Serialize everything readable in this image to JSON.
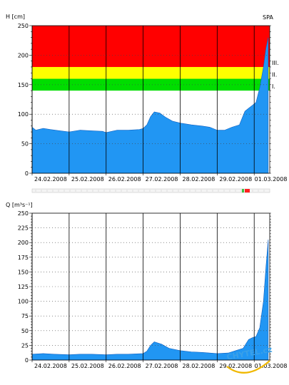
{
  "station": "SPA",
  "colors": {
    "fill": "#2196f3",
    "band_red": "#ff0000",
    "band_yellow": "#ffff00",
    "band_green": "#00dd00",
    "grid": "#000000",
    "timeline_marker_red": "#ff2020",
    "timeline_marker_green": "#40c040"
  },
  "watermark": "CHYTEL.cz",
  "chart_data": [
    {
      "type": "area",
      "ylabel": "H [cm]",
      "ylim": [
        0,
        250
      ],
      "yticks": [
        "0",
        "50",
        "100",
        "150",
        "200",
        "250"
      ],
      "xlim": [
        "24.02.2008 00:00",
        "01.03.2008 10:00"
      ],
      "xtick_labels": [
        "24.02.2008",
        "25.02.2008",
        "26.02.2008",
        "27.02.2008",
        "28.02.2008",
        "29.02.2008",
        "01.03.2008"
      ],
      "flood_levels": [
        {
          "name": "I.",
          "from": 140,
          "to": 160,
          "color": "green"
        },
        {
          "name": "II.",
          "from": 160,
          "to": 180,
          "color": "yellow"
        },
        {
          "name": "III.",
          "from": 180,
          "to": 250,
          "color": "red"
        }
      ],
      "series": [
        {
          "x": [
            0,
            0.1,
            0.3,
            0.5,
            0.75,
            1.0,
            1.3,
            1.6,
            1.9,
            2.0,
            2.3,
            2.6,
            2.9,
            3.0,
            3.1,
            3.2,
            3.3,
            3.45,
            3.6,
            3.8,
            4.0,
            4.3,
            4.6,
            4.8,
            5.0,
            5.2,
            5.4,
            5.6,
            5.75,
            5.85,
            5.95,
            6.05,
            6.15,
            6.25,
            6.32,
            6.38
          ],
          "y": [
            78,
            73,
            76,
            74,
            72,
            70,
            73,
            72,
            71,
            69,
            73,
            73,
            74,
            76,
            82,
            96,
            104,
            102,
            95,
            88,
            85,
            82,
            80,
            78,
            73,
            73,
            78,
            82,
            105,
            110,
            115,
            120,
            145,
            180,
            212,
            230
          ]
        }
      ]
    },
    {
      "type": "area",
      "ylabel": "Q [m³s⁻¹]",
      "ylim": [
        0,
        250
      ],
      "yticks": [
        "0",
        "25",
        "50",
        "75",
        "100",
        "125",
        "150",
        "175",
        "200",
        "225",
        "250"
      ],
      "xlim": [
        "24.02.2008 00:00",
        "01.03.2008 10:00"
      ],
      "xtick_labels": [
        "24.02.2008",
        "25.02.2008",
        "26.02.2008",
        "27.02.2008",
        "28.02.2008",
        "29.02.2008",
        "01.03.2008"
      ],
      "series": [
        {
          "x": [
            0,
            0.3,
            0.6,
            1.0,
            1.3,
            1.6,
            2.0,
            2.3,
            2.6,
            3.0,
            3.1,
            3.2,
            3.3,
            3.5,
            3.7,
            4.0,
            4.3,
            4.6,
            5.0,
            5.3,
            5.5,
            5.7,
            5.85,
            5.95,
            6.05,
            6.15,
            6.25,
            6.32,
            6.38
          ],
          "y": [
            10,
            11,
            10,
            9,
            10,
            10,
            9,
            10,
            10,
            11,
            15,
            25,
            31,
            27,
            20,
            16,
            14,
            13,
            11,
            12,
            16,
            20,
            35,
            38,
            40,
            55,
            100,
            160,
            205
          ]
        }
      ]
    }
  ]
}
